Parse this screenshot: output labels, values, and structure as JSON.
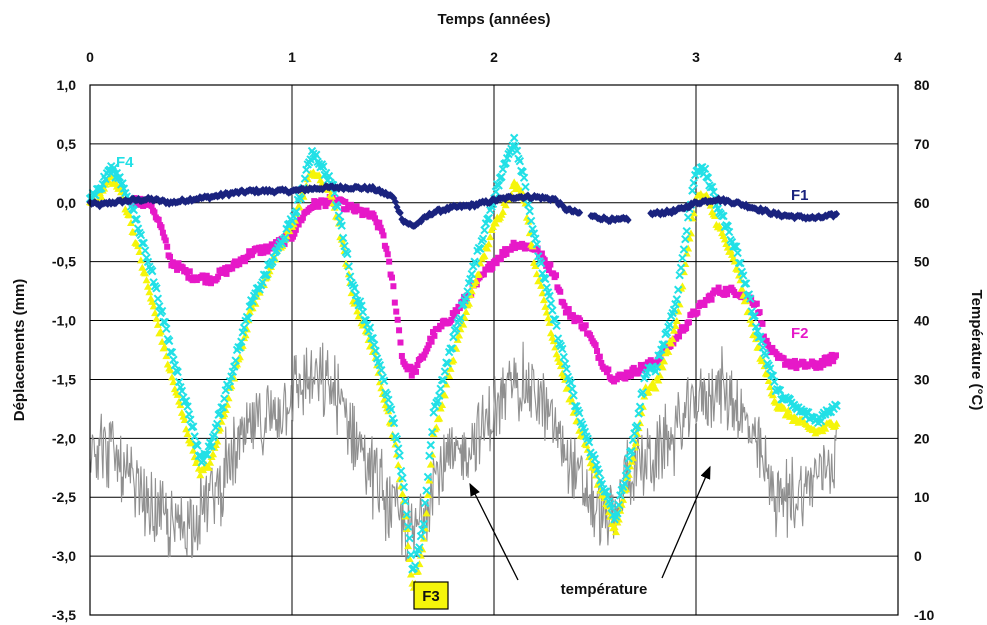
{
  "chart_data": {
    "type": "scatter",
    "xlabel": "Temps (années)",
    "ylabel": "Déplacements (mm)",
    "y2label": "Température (°C)",
    "xlim": [
      0,
      4
    ],
    "ylim": [
      -3.5,
      1.0
    ],
    "y2lim": [
      -10,
      80
    ],
    "x_ticks": [
      "0",
      "1",
      "2",
      "3",
      "4"
    ],
    "y_ticks": [
      "1,0",
      "0,5",
      "0,0",
      "-0,5",
      "-1,0",
      "-1,5",
      "-2,0",
      "-2,5",
      "-3,0",
      "-3,5"
    ],
    "y2_ticks": [
      "80",
      "70",
      "60",
      "50",
      "40",
      "30",
      "20",
      "10",
      "0",
      "-10"
    ],
    "grid": true,
    "series": [
      {
        "name": "F1",
        "axis": "left",
        "color": "#1a237e",
        "marker": "diamond",
        "points": [
          [
            0.0,
            0.0
          ],
          [
            0.05,
            -0.02
          ],
          [
            0.1,
            0.0
          ],
          [
            0.2,
            0.02
          ],
          [
            0.3,
            0.03
          ],
          [
            0.4,
            0.0
          ],
          [
            0.5,
            0.03
          ],
          [
            0.6,
            0.05
          ],
          [
            0.7,
            0.08
          ],
          [
            0.8,
            0.1
          ],
          [
            0.9,
            0.1
          ],
          [
            1.0,
            0.1
          ],
          [
            1.1,
            0.12
          ],
          [
            1.2,
            0.13
          ],
          [
            1.3,
            0.13
          ],
          [
            1.4,
            0.12
          ],
          [
            1.5,
            0.05
          ],
          [
            1.55,
            -0.15
          ],
          [
            1.6,
            -0.2
          ],
          [
            1.7,
            -0.08
          ],
          [
            1.8,
            -0.04
          ],
          [
            1.9,
            -0.02
          ],
          [
            2.0,
            0.02
          ],
          [
            2.1,
            0.05
          ],
          [
            2.2,
            0.05
          ],
          [
            2.3,
            0.03
          ],
          [
            2.35,
            -0.05
          ],
          [
            2.4,
            -0.08
          ],
          [
            2.5,
            -0.12
          ],
          [
            2.6,
            -0.15
          ],
          [
            2.65,
            -0.14
          ],
          [
            2.8,
            -0.09
          ],
          [
            2.9,
            -0.07
          ],
          [
            3.0,
            0.0
          ],
          [
            3.1,
            0.03
          ],
          [
            3.2,
            0.0
          ],
          [
            3.3,
            -0.05
          ],
          [
            3.4,
            -0.1
          ],
          [
            3.5,
            -0.12
          ],
          [
            3.6,
            -0.13
          ],
          [
            3.7,
            -0.1
          ]
        ]
      },
      {
        "name": "F2",
        "axis": "left",
        "color": "#e619c8",
        "marker": "square",
        "points": [
          [
            0.2,
            0.02
          ],
          [
            0.3,
            0.0
          ],
          [
            0.35,
            -0.2
          ],
          [
            0.4,
            -0.5
          ],
          [
            0.5,
            -0.62
          ],
          [
            0.6,
            -0.65
          ],
          [
            0.7,
            -0.55
          ],
          [
            0.8,
            -0.42
          ],
          [
            0.9,
            -0.38
          ],
          [
            1.0,
            -0.28
          ],
          [
            1.05,
            -0.12
          ],
          [
            1.1,
            -0.02
          ],
          [
            1.2,
            0.02
          ],
          [
            1.3,
            -0.05
          ],
          [
            1.4,
            -0.12
          ],
          [
            1.45,
            -0.25
          ],
          [
            1.5,
            -0.7
          ],
          [
            1.55,
            -1.35
          ],
          [
            1.6,
            -1.45
          ],
          [
            1.65,
            -1.3
          ],
          [
            1.7,
            -1.12
          ],
          [
            1.8,
            -0.95
          ],
          [
            1.9,
            -0.72
          ],
          [
            2.0,
            -0.5
          ],
          [
            2.1,
            -0.35
          ],
          [
            2.2,
            -0.38
          ],
          [
            2.3,
            -0.6
          ],
          [
            2.35,
            -0.9
          ],
          [
            2.45,
            -1.05
          ],
          [
            2.55,
            -1.4
          ],
          [
            2.6,
            -1.5
          ],
          [
            2.8,
            -1.35
          ],
          [
            2.9,
            -1.15
          ],
          [
            3.0,
            -0.92
          ],
          [
            3.1,
            -0.75
          ],
          [
            3.2,
            -0.75
          ],
          [
            3.3,
            -0.85
          ],
          [
            3.35,
            -1.2
          ],
          [
            3.4,
            -1.32
          ],
          [
            3.5,
            -1.38
          ],
          [
            3.6,
            -1.38
          ],
          [
            3.7,
            -1.3
          ]
        ]
      },
      {
        "name": "F3",
        "axis": "left",
        "color": "#f5f50a",
        "marker": "triangle",
        "points": [
          [
            0.0,
            0.0
          ],
          [
            0.05,
            0.05
          ],
          [
            0.1,
            0.22
          ],
          [
            0.15,
            0.1
          ],
          [
            0.2,
            -0.15
          ],
          [
            0.3,
            -0.8
          ],
          [
            0.4,
            -1.45
          ],
          [
            0.5,
            -2.05
          ],
          [
            0.55,
            -2.3
          ],
          [
            0.6,
            -2.2
          ],
          [
            0.7,
            -1.55
          ],
          [
            0.8,
            -0.9
          ],
          [
            0.9,
            -0.52
          ],
          [
            1.0,
            -0.2
          ],
          [
            1.05,
            0.05
          ],
          [
            1.1,
            0.28
          ],
          [
            1.2,
            0.05
          ],
          [
            1.25,
            -0.35
          ],
          [
            1.3,
            -0.8
          ],
          [
            1.4,
            -1.25
          ],
          [
            1.5,
            -1.95
          ],
          [
            1.55,
            -2.5
          ],
          [
            1.6,
            -3.3
          ],
          [
            1.65,
            -2.9
          ],
          [
            1.7,
            -2.0
          ],
          [
            1.8,
            -1.3
          ],
          [
            1.9,
            -0.7
          ],
          [
            2.0,
            -0.2
          ],
          [
            2.1,
            0.15
          ],
          [
            2.15,
            0.05
          ],
          [
            2.2,
            -0.5
          ],
          [
            2.3,
            -1.2
          ],
          [
            2.4,
            -1.8
          ],
          [
            2.5,
            -2.3
          ],
          [
            2.6,
            -2.8
          ],
          [
            2.7,
            -2.05
          ],
          [
            2.75,
            -1.6
          ],
          [
            2.8,
            -1.55
          ],
          [
            2.9,
            -1.05
          ],
          [
            3.0,
            0.05
          ],
          [
            3.05,
            0.05
          ],
          [
            3.1,
            -0.15
          ],
          [
            3.2,
            -0.55
          ],
          [
            3.3,
            -1.2
          ],
          [
            3.4,
            -1.72
          ],
          [
            3.5,
            -1.85
          ],
          [
            3.6,
            -1.95
          ],
          [
            3.7,
            -1.85
          ]
        ]
      },
      {
        "name": "F4",
        "axis": "left",
        "color": "#22e0e6",
        "marker": "x",
        "points": [
          [
            0.0,
            0.05
          ],
          [
            0.05,
            0.12
          ],
          [
            0.1,
            0.3
          ],
          [
            0.15,
            0.2
          ],
          [
            0.2,
            0.0
          ],
          [
            0.3,
            -0.55
          ],
          [
            0.4,
            -1.25
          ],
          [
            0.5,
            -1.85
          ],
          [
            0.55,
            -2.2
          ],
          [
            0.6,
            -2.05
          ],
          [
            0.7,
            -1.45
          ],
          [
            0.8,
            -0.85
          ],
          [
            0.9,
            -0.5
          ],
          [
            1.0,
            -0.15
          ],
          [
            1.05,
            0.1
          ],
          [
            1.1,
            0.45
          ],
          [
            1.2,
            0.15
          ],
          [
            1.25,
            -0.25
          ],
          [
            1.3,
            -0.7
          ],
          [
            1.4,
            -1.15
          ],
          [
            1.5,
            -1.85
          ],
          [
            1.55,
            -2.35
          ],
          [
            1.6,
            -3.15
          ],
          [
            1.65,
            -2.75
          ],
          [
            1.7,
            -1.8
          ],
          [
            1.8,
            -1.15
          ],
          [
            1.9,
            -0.55
          ],
          [
            2.0,
            0.05
          ],
          [
            2.1,
            0.55
          ],
          [
            2.15,
            0.2
          ],
          [
            2.2,
            -0.3
          ],
          [
            2.3,
            -1.0
          ],
          [
            2.4,
            -1.7
          ],
          [
            2.5,
            -2.2
          ],
          [
            2.6,
            -2.7
          ],
          [
            2.7,
            -1.95
          ],
          [
            2.75,
            -1.45
          ],
          [
            2.8,
            -1.4
          ],
          [
            2.9,
            -0.85
          ],
          [
            3.0,
            0.3
          ],
          [
            3.05,
            0.25
          ],
          [
            3.1,
            0.0
          ],
          [
            3.2,
            -0.4
          ],
          [
            3.3,
            -1.05
          ],
          [
            3.4,
            -1.6
          ],
          [
            3.5,
            -1.75
          ],
          [
            3.6,
            -1.85
          ],
          [
            3.7,
            -1.7
          ]
        ]
      },
      {
        "name": "température",
        "axis": "right",
        "color": "#909090",
        "marker": "line",
        "points": [
          [
            0.0,
            20
          ],
          [
            0.1,
            18
          ],
          [
            0.2,
            12
          ],
          [
            0.3,
            8
          ],
          [
            0.4,
            5
          ],
          [
            0.5,
            6
          ],
          [
            0.6,
            10
          ],
          [
            0.7,
            16
          ],
          [
            0.8,
            22
          ],
          [
            0.9,
            24
          ],
          [
            1.0,
            28
          ],
          [
            1.1,
            30
          ],
          [
            1.2,
            28
          ],
          [
            1.3,
            22
          ],
          [
            1.4,
            14
          ],
          [
            1.5,
            8
          ],
          [
            1.6,
            3
          ],
          [
            1.65,
            8
          ],
          [
            1.7,
            14
          ],
          [
            1.8,
            16
          ],
          [
            1.9,
            20
          ],
          [
            2.0,
            24
          ],
          [
            2.1,
            30
          ],
          [
            2.2,
            28
          ],
          [
            2.3,
            22
          ],
          [
            2.4,
            14
          ],
          [
            2.5,
            8
          ],
          [
            2.6,
            5
          ],
          [
            2.65,
            14
          ],
          [
            2.8,
            17
          ],
          [
            2.9,
            21
          ],
          [
            3.0,
            26
          ],
          [
            3.1,
            29
          ],
          [
            3.2,
            26
          ],
          [
            3.3,
            18
          ],
          [
            3.4,
            10
          ],
          [
            3.5,
            10
          ],
          [
            3.6,
            14
          ],
          [
            3.7,
            18
          ]
        ]
      }
    ],
    "annotations": [
      "température"
    ]
  }
}
